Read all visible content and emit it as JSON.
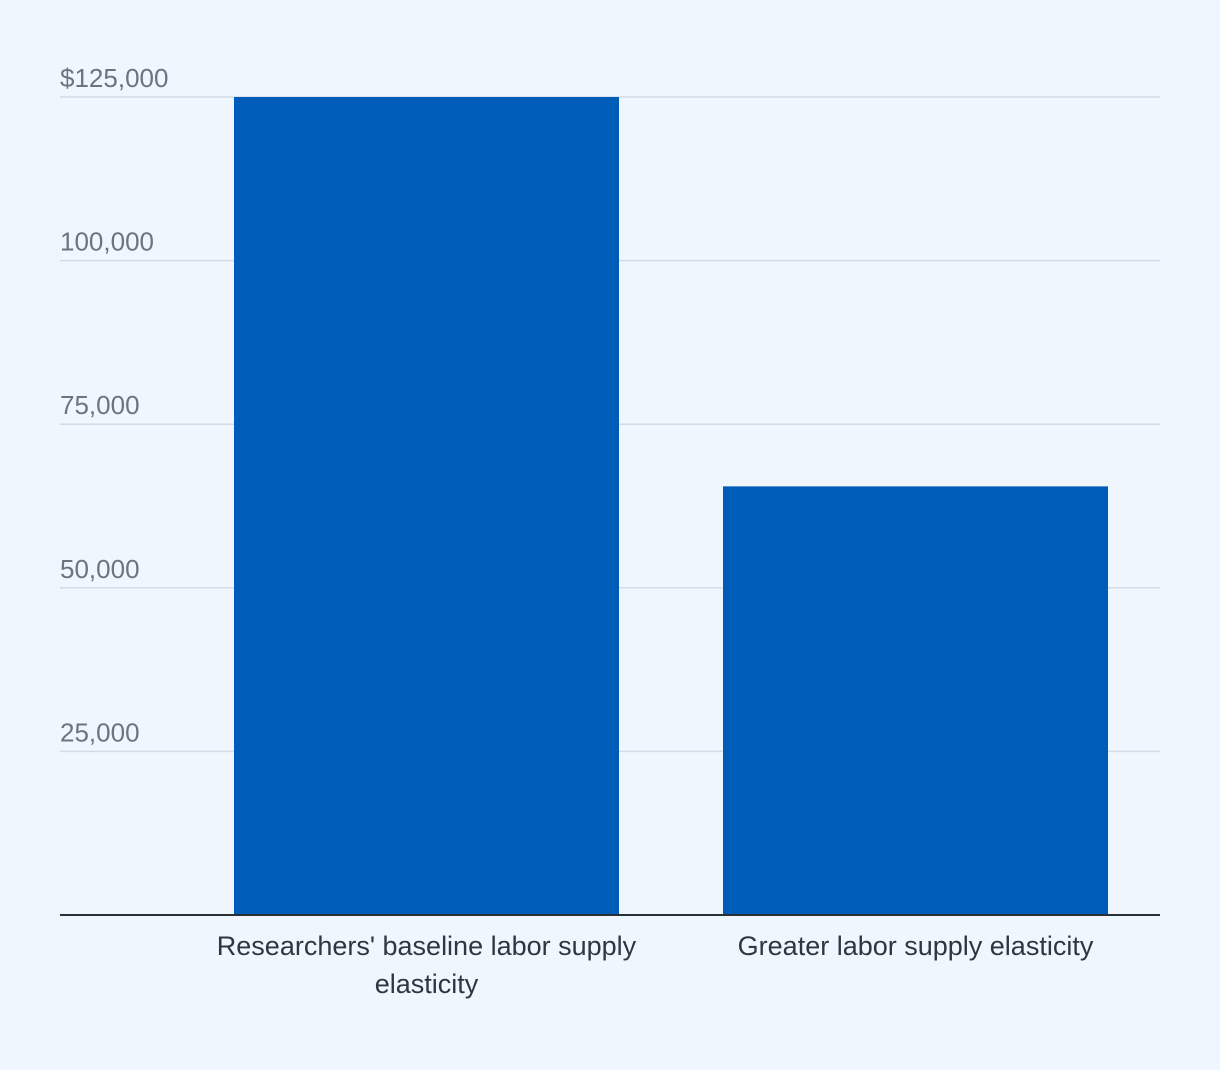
{
  "chart_data": {
    "type": "bar",
    "categories": [
      [
        "Researchers' baseline labor supply",
        "elasticity"
      ],
      [
        "Greater labor supply elasticity"
      ]
    ],
    "values": [
      125000,
      65500
    ],
    "ylim": [
      0,
      125000
    ],
    "yticks": [
      25000,
      50000,
      75000,
      100000,
      125000
    ],
    "ytick_labels": [
      "25,000",
      "50,000",
      "75,000",
      "100,000",
      "$125,000"
    ],
    "grid": true,
    "bar_color": "#005cb9"
  }
}
